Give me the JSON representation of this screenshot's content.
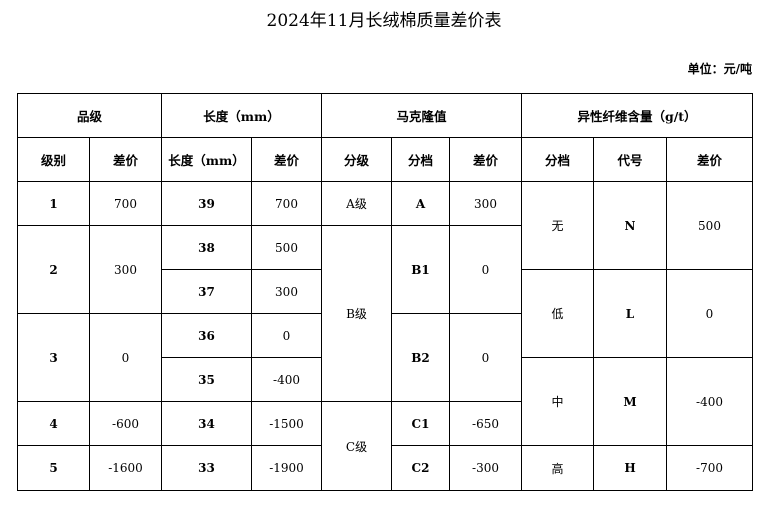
{
  "title": "2024年11月长绒棉质量差价表",
  "unit": "单位：元/吨",
  "header_groups": [
    "品级",
    "长度（mm）",
    "马克隆值",
    "异性纤维含量（g/t）"
  ],
  "subheaders": [
    "级别",
    "差价",
    "长度（mm）",
    "差价",
    "分级",
    "分档",
    "差价",
    "分档",
    "代号",
    "差价"
  ],
  "grade": [
    {
      "level": "1",
      "diff": "700"
    },
    {
      "level": "2",
      "diff": "300"
    },
    {
      "level": "3",
      "diff": "0"
    },
    {
      "level": "4",
      "diff": "-600"
    },
    {
      "level": "5",
      "diff": "-1600"
    }
  ],
  "length": [
    {
      "length": "39",
      "diff": "700"
    },
    {
      "length": "38",
      "diff": "500"
    },
    {
      "length": "37",
      "diff": "300"
    },
    {
      "length": "36",
      "diff": "0"
    },
    {
      "length": "35",
      "diff": "-400"
    },
    {
      "length": "34",
      "diff": "-1500"
    },
    {
      "length": "33",
      "diff": "-1900"
    }
  ],
  "micronaire": {
    "grades": [
      "A级",
      "B级",
      "C级"
    ],
    "bins": [
      {
        "bin": "A",
        "diff": "300"
      },
      {
        "bin": "B1",
        "diff": "0"
      },
      {
        "bin": "B2",
        "diff": "0"
      },
      {
        "bin": "C1",
        "diff": "-650"
      },
      {
        "bin": "C2",
        "diff": "-300"
      }
    ]
  },
  "foreign_fiber": [
    {
      "bin": "无",
      "code": "N",
      "diff": "500"
    },
    {
      "bin": "低",
      "code": "L",
      "diff": "0"
    },
    {
      "bin": "中",
      "code": "M",
      "diff": "-400"
    },
    {
      "bin": "高",
      "code": "H",
      "diff": "-700"
    }
  ]
}
